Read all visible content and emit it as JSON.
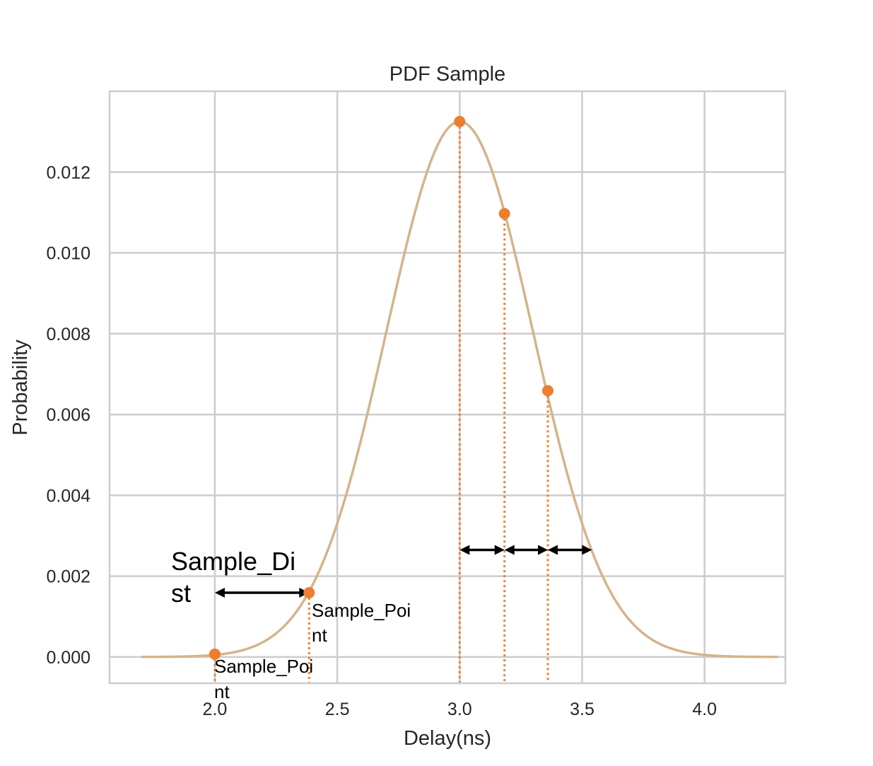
{
  "chart_data": {
    "type": "line",
    "title": "PDF Sample",
    "xlabel": "Delay(ns)",
    "ylabel": "Probability",
    "xlim": [
      1.57,
      4.33
    ],
    "ylim": [
      -0.00065,
      0.014
    ],
    "xticks": [
      2.0,
      2.5,
      3.0,
      3.5,
      4.0
    ],
    "xtick_labels": [
      "2.0",
      "2.5",
      "3.0",
      "3.5",
      "4.0"
    ],
    "yticks": [
      0.0,
      0.002,
      0.004,
      0.006,
      0.008,
      0.01,
      0.012
    ],
    "ytick_labels": [
      "0.000",
      "0.002",
      "0.004",
      "0.006",
      "0.008",
      "0.010",
      "0.012"
    ],
    "grid": true,
    "curve": {
      "x_range": [
        1.7,
        4.3
      ],
      "mean": 3.0,
      "std": 0.3,
      "peak": 0.01325,
      "color": "#d4b48c"
    },
    "sample_points": [
      {
        "x": 2.0,
        "y": 7e-05
      },
      {
        "x": 2.385,
        "y": 0.00159
      },
      {
        "x": 3.0,
        "y": 0.01325
      },
      {
        "x": 3.183,
        "y": 0.01097
      },
      {
        "x": 3.36,
        "y": 0.00659
      }
    ],
    "point_color": "#ed7d31",
    "arrows": [
      {
        "x1": 2.0,
        "x2": 2.385,
        "y": 0.00159
      },
      {
        "x1": 3.0,
        "x2": 3.183,
        "y": 0.00265
      },
      {
        "x1": 3.183,
        "x2": 3.36,
        "y": 0.00265
      },
      {
        "x1": 3.36,
        "x2": 3.54,
        "y": 0.00265
      }
    ],
    "annotations": {
      "sample_dist": [
        "Sample_Di",
        "st"
      ],
      "sample_point_upper": [
        "Sample_Poi",
        "nt"
      ],
      "sample_point_lower": [
        "Sample_Poi",
        "nt"
      ]
    }
  }
}
